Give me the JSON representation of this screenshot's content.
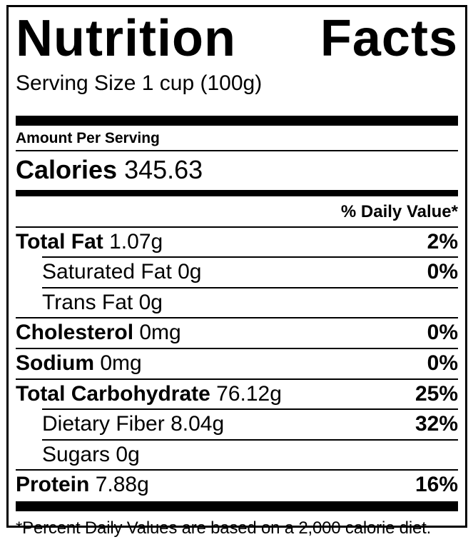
{
  "title": {
    "full": "Nutrition Facts",
    "word1": "Nutrition",
    "word2": "Facts"
  },
  "serving_size": "Serving Size 1 cup (100g)",
  "amount_per_serving": "Amount Per Serving",
  "calories": {
    "label": "Calories",
    "value": "345.63"
  },
  "daily_value_header": "% Daily Value*",
  "rows": [
    {
      "label": "Total Fat",
      "value": "1.07g",
      "percent": "2%",
      "bold": true,
      "indent": false
    },
    {
      "label": "Saturated Fat",
      "value": "0g",
      "percent": "0%",
      "bold": false,
      "indent": true
    },
    {
      "label": "Trans Fat",
      "value": "0g",
      "percent": "",
      "bold": false,
      "indent": true
    },
    {
      "label": "Cholesterol",
      "value": "0mg",
      "percent": "0%",
      "bold": true,
      "indent": false
    },
    {
      "label": "Sodium",
      "value": "0mg",
      "percent": "0%",
      "bold": true,
      "indent": false
    },
    {
      "label": "Total Carbohydrate",
      "value": "76.12g",
      "percent": "25%",
      "bold": true,
      "indent": false
    },
    {
      "label": "Dietary Fiber",
      "value": "8.04g",
      "percent": "32%",
      "bold": false,
      "indent": true
    },
    {
      "label": "Sugars",
      "value": "0g",
      "percent": "",
      "bold": false,
      "indent": true
    },
    {
      "label": "Protein",
      "value": "7.88g",
      "percent": "16%",
      "bold": true,
      "indent": false
    }
  ],
  "footnote": "*Percent Daily Values are based on a 2,000 calorie diet.",
  "colors": {
    "text": "#000000",
    "background": "#ffffff",
    "border": "#000000"
  }
}
